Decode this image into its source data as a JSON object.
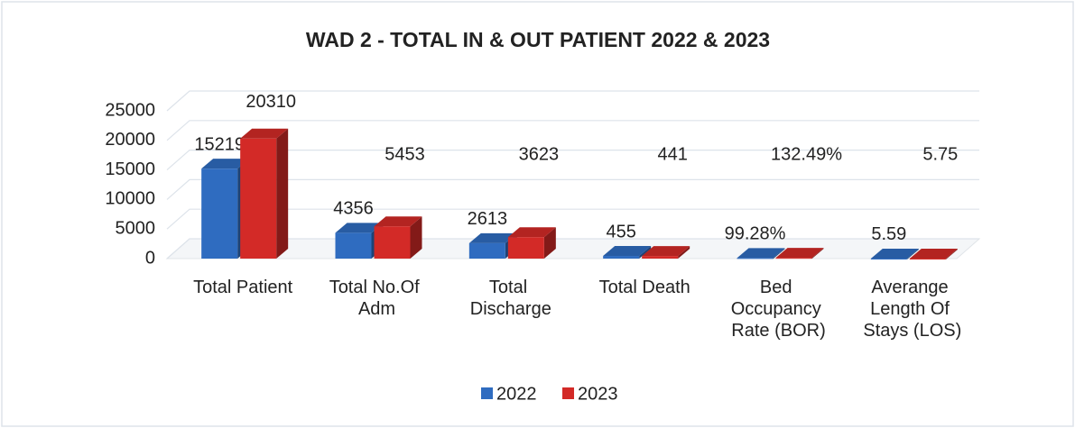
{
  "chart_data": {
    "type": "bar",
    "title": "WAD 2 - TOTAL IN & OUT PATIENT 2022 & 2023",
    "categories": [
      "Total Patient",
      "Total No.Of Adm",
      "Total Discharge",
      "Total Death",
      "Bed Occupancy Rate (BOR)",
      "Averange Length Of Stays (LOS)"
    ],
    "series": [
      {
        "name": "2022",
        "color": "#2f6cc0",
        "values": [
          15219,
          4356,
          2613,
          455,
          99.28,
          5.59
        ],
        "value_labels": [
          "15219",
          "4356",
          "2613",
          "455",
          "99.28%",
          "5.59"
        ]
      },
      {
        "name": "2023",
        "color": "#d32a27",
        "values": [
          20310,
          5453,
          3623,
          441,
          132.49,
          5.75
        ],
        "value_labels": [
          "20310",
          "5453",
          "3623",
          "441",
          "132.49%",
          "5.75"
        ]
      }
    ],
    "ylim": [
      0,
      25000
    ],
    "yticks": [
      0,
      5000,
      10000,
      15000,
      20000,
      25000
    ],
    "grid": true,
    "legend": "bottom"
  }
}
